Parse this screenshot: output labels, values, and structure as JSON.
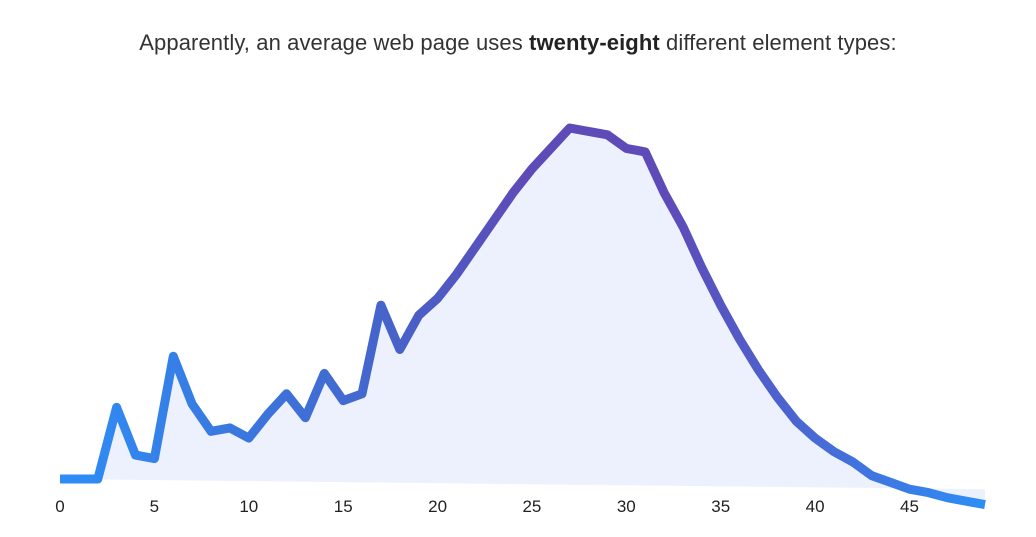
{
  "headline": {
    "prefix": "Apparently, an average web page uses ",
    "emphasis": "twenty-eight",
    "suffix": " different element types:"
  },
  "chart_data": {
    "type": "area",
    "title": "",
    "xlabel": "",
    "ylabel": "",
    "xlim": [
      0,
      49
    ],
    "x_ticks": [
      0,
      5,
      10,
      15,
      20,
      25,
      30,
      35,
      40,
      45
    ],
    "grid": false,
    "legend": "none",
    "y_axis_visible": false,
    "x": [
      0,
      1,
      2,
      3,
      4,
      5,
      6,
      7,
      8,
      9,
      10,
      11,
      12,
      13,
      14,
      15,
      16,
      17,
      18,
      19,
      20,
      21,
      22,
      23,
      24,
      25,
      26,
      27,
      28,
      29,
      30,
      31,
      32,
      33,
      34,
      35,
      36,
      37,
      38,
      39,
      40,
      41,
      42,
      43,
      44,
      45,
      46,
      47,
      48,
      49
    ],
    "values": [
      0,
      0,
      0,
      21,
      7,
      6,
      36,
      22,
      14,
      15,
      12,
      19,
      25,
      18,
      31,
      23,
      25,
      51,
      38,
      48,
      53,
      60,
      68,
      76,
      84,
      91,
      97,
      103,
      102,
      101,
      97,
      96,
      84,
      74,
      62,
      51,
      41,
      32,
      24,
      17,
      12,
      8,
      5,
      1,
      -1,
      -3,
      -4,
      -5.5,
      -6.5,
      -7.5
    ],
    "baseline_start": 0,
    "baseline_end": -3,
    "colors": {
      "line_start": "#2d8ef6",
      "line_end": "#5e4bb8",
      "fill": "#edf0fd"
    }
  }
}
